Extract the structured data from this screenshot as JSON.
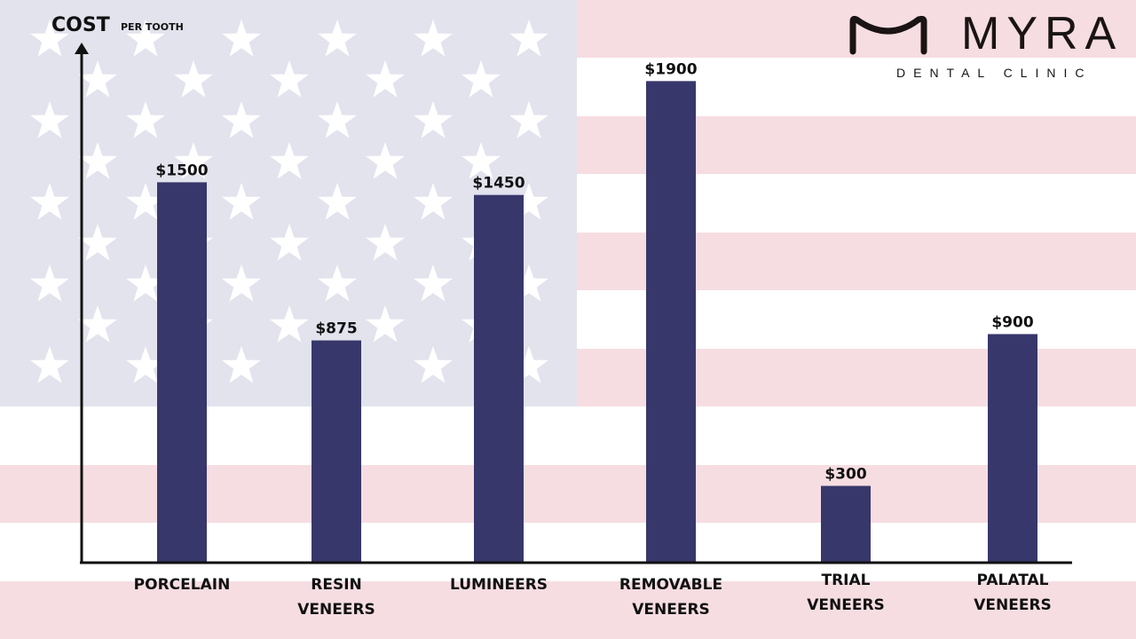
{
  "brand": {
    "name": "MYRA",
    "subtitle": "DENTAL CLINIC"
  },
  "colors": {
    "bar": "#38376b",
    "stripe": "#f6dde2",
    "canton": "#e2e3ed",
    "star": "#ffffff",
    "axis": "#111111"
  },
  "chart_data": {
    "type": "bar",
    "ylabel": "COST",
    "ylabel_sub": "PER TOOTH",
    "categories": [
      [
        "PORCELAIN"
      ],
      [
        "RESIN",
        "VENEERS"
      ],
      [
        "LUMINEERS"
      ],
      [
        "REMOVABLE",
        "VENEERS"
      ],
      [
        "TRIAL",
        "VENEERS"
      ],
      [
        "PALATAL",
        "VENEERS"
      ]
    ],
    "values": [
      1500,
      875,
      1450,
      1900,
      300,
      900
    ],
    "data_labels": [
      "$1500",
      "$875",
      "$1450",
      "$1900",
      "$300",
      "$900"
    ],
    "ylim": [
      0,
      2000
    ],
    "grid": false,
    "legend": "none"
  }
}
